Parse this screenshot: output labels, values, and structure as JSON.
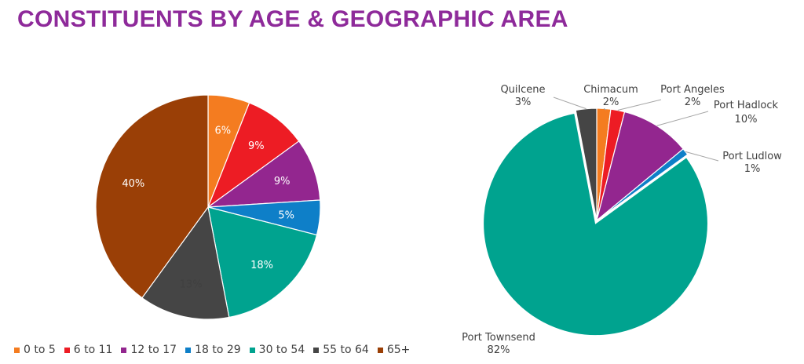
{
  "title": "CONSTITUENTS BY AGE & GEOGRAPHIC AREA",
  "colors": {
    "title": "#8e2a9a",
    "label_text": "#404040",
    "inner_label_text": "#ffffff"
  },
  "chart_data": [
    {
      "type": "pie",
      "title": "",
      "legend_position": "bottom",
      "categories": [
        "0 to 5",
        "6 to 11",
        "12 to 17",
        "18 to 29",
        "30 to 54",
        "55 to 64",
        "65+"
      ],
      "values": [
        6,
        9,
        9,
        5,
        18,
        13,
        40
      ],
      "labels": [
        "6%",
        "9%",
        "9%",
        "5%",
        "18%",
        "13%",
        "40%"
      ],
      "colors": [
        "#f47c20",
        "#ed1c24",
        "#93268f",
        "#0e7fc8",
        "#00a38f",
        "#454545",
        "#9a3f06"
      ]
    },
    {
      "type": "pie",
      "title": "",
      "categories": [
        "Chimacum",
        "Port Angeles",
        "Port Hadlock",
        "Port Ludlow",
        "Port Townsend",
        "Quilcene"
      ],
      "values": [
        2,
        2,
        10,
        1,
        82,
        3
      ],
      "labels": [
        "2%",
        "2%",
        "10%",
        "1%",
        "82%",
        "3%"
      ],
      "colors": [
        "#f47c20",
        "#ed1c24",
        "#93268f",
        "#0e7fc8",
        "#00a38f",
        "#454545"
      ]
    }
  ]
}
